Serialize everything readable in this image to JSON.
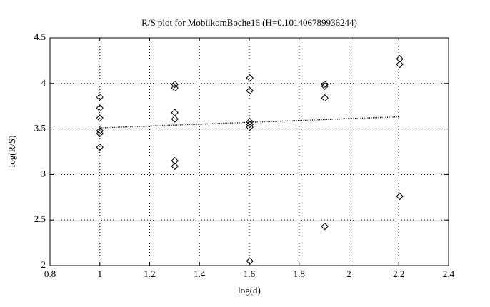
{
  "chart_data": {
    "type": "scatter",
    "title": "R/S plot for MobilkomBoche16 (H=0.101406789936244)",
    "xlabel": "log(d)",
    "ylabel": "log(R/S)",
    "series": [
      {
        "marker": "diamond",
        "color": "#000000",
        "x": [
          1,
          1,
          1,
          1,
          1,
          1,
          1.301,
          1.301,
          1.301,
          1.301,
          1.301,
          1.301,
          1.602,
          1.602,
          1.602,
          1.602,
          1.602,
          1.602,
          1.903,
          1.903,
          1.903,
          1.903,
          2.204,
          2.204,
          2.204
        ],
        "values": [
          3.85,
          3.73,
          3.62,
          3.48,
          3.45,
          3.3,
          3.99,
          3.95,
          3.68,
          3.61,
          3.15,
          3.09,
          4.06,
          3.92,
          3.58,
          3.55,
          3.52,
          2.05,
          3.99,
          3.97,
          3.84,
          2.43,
          4.27,
          4.21,
          2.76
        ]
      },
      {
        "marker": "dotted-line",
        "color": "#000000",
        "x": [
          1,
          2.204
        ],
        "values": [
          3.512,
          3.634
        ]
      }
    ],
    "xlim": [
      0.8,
      2.4
    ],
    "xticks": [
      0.8,
      1,
      1.2,
      1.4,
      1.6,
      1.8,
      2,
      2.2,
      2.4
    ],
    "ylim": [
      2,
      4.5
    ],
    "yticks": [
      2,
      2.5,
      3,
      3.5,
      4,
      4.5
    ],
    "grid": true
  }
}
